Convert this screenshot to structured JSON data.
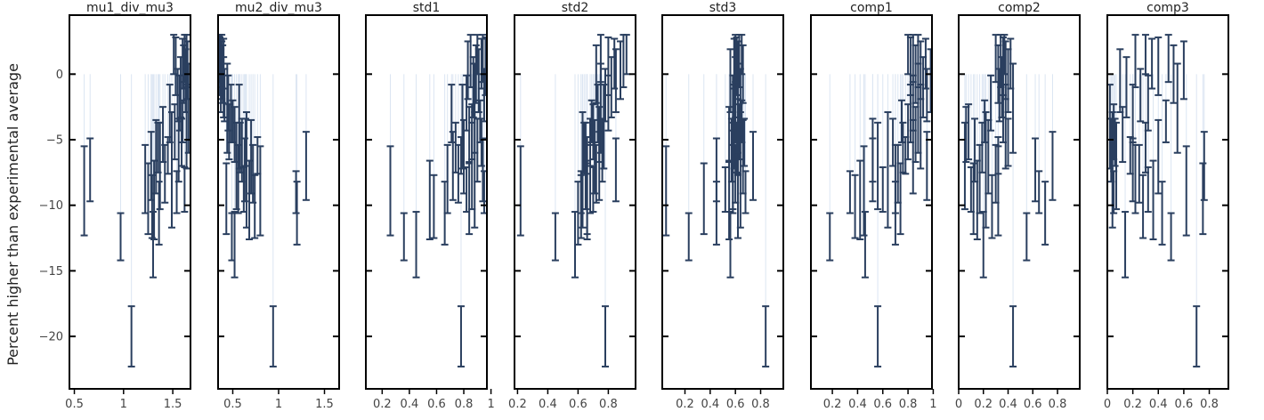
{
  "chart_data": {
    "type": "errorbar-scatter",
    "ylabel": "Percent higher than experimental average",
    "ylim": [
      -24,
      4.5
    ],
    "yticks": [
      0,
      -5,
      -10,
      -15,
      -20
    ],
    "error_color": "#2a3f5f",
    "stem_color": "#dbe5f2",
    "points": [
      {
        "y": -13.0,
        "e": 2.5
      },
      {
        "y": -10.6,
        "e": 2.4
      },
      {
        "y": -10.1,
        "e": 2.4
      },
      {
        "y": -9.6,
        "e": 3.0
      },
      {
        "y": -9.5,
        "e": 2.7
      },
      {
        "y": -9.0,
        "e": 1.6
      },
      {
        "y": -8.8,
        "e": 1.7
      },
      {
        "y": -8.0,
        "e": 2.6
      },
      {
        "y": -7.6,
        "e": 2.2
      },
      {
        "y": -7.3,
        "e": 4.4
      },
      {
        "y": -7.0,
        "e": 2.6
      },
      {
        "y": -7.0,
        "e": 3.3
      },
      {
        "y": -6.3,
        "e": 2.8
      },
      {
        "y": -6.2,
        "e": 1.4
      },
      {
        "y": -5.8,
        "e": 2.4
      },
      {
        "y": -5.6,
        "e": 1.9
      },
      {
        "y": -5.2,
        "e": 1.8
      },
      {
        "y": -4.6,
        "e": 2.1
      },
      {
        "y": -4.4,
        "e": 2.1
      },
      {
        "y": -4.0,
        "e": 3.2
      },
      {
        "y": -3.6,
        "e": 1.6
      },
      {
        "y": -3.0,
        "e": 2.2
      },
      {
        "y": -2.6,
        "e": 3.4
      },
      {
        "y": -2.2,
        "e": 2.1
      },
      {
        "y": -1.6,
        "e": 2.0
      },
      {
        "y": -1.0,
        "e": 2.3
      },
      {
        "y": -0.5,
        "e": 2.4
      },
      {
        "y": 0.0,
        "e": 2.2
      },
      {
        "y": 0.3,
        "e": 2.2
      },
      {
        "y": 0.6,
        "e": 2.2
      },
      {
        "y": 0.8,
        "e": 1.9
      },
      {
        "y": 1.0,
        "e": 2.0
      },
      {
        "y": 1.2,
        "e": 1.8
      },
      {
        "y": 1.5,
        "e": 1.5
      },
      {
        "y": -20.0,
        "e": 2.3
      },
      {
        "y": -8.9,
        "e": 3.4
      },
      {
        "y": -7.3,
        "e": 2.4
      },
      {
        "y": -12.4,
        "e": 1.8
      }
    ],
    "panels": [
      {
        "title": "mu1_div_mu3",
        "xlim": [
          0.45,
          1.68
        ],
        "xticks": [
          0.5,
          1,
          1.5
        ],
        "xticklabels": [
          "0.5",
          "1",
          "1.5"
        ],
        "x": [
          1.3,
          1.36,
          1.29,
          1.31,
          1.25,
          1.54,
          1.62,
          1.22,
          1.42,
          1.49,
          1.28,
          1.37,
          1.33,
          1.45,
          1.56,
          1.35,
          1.59,
          1.4,
          1.52,
          1.64,
          1.6,
          1.47,
          1.66,
          1.57,
          1.55,
          1.58,
          1.63,
          1.61,
          1.65,
          1.53,
          1.6,
          1.64,
          1.62,
          1.51,
          1.08,
          0.6,
          0.66,
          0.97
        ]
      },
      {
        "title": "mu2_div_mu3",
        "xlim": [
          0.34,
          1.66
        ],
        "xticks": [
          0.5,
          1,
          1.5
        ],
        "xticklabels": [
          "0.5",
          "1",
          "1.5"
        ],
        "x": [
          0.52,
          1.2,
          0.74,
          0.68,
          0.43,
          1.19,
          0.62,
          0.56,
          0.72,
          0.65,
          1.3,
          0.54,
          0.7,
          0.77,
          0.6,
          0.58,
          0.64,
          0.52,
          0.46,
          0.57,
          0.5,
          0.48,
          0.44,
          0.45,
          0.41,
          0.4,
          0.37,
          0.39,
          0.38,
          0.36,
          0.4,
          0.38,
          0.36,
          0.35,
          0.94,
          0.8,
          0.63,
          0.49
        ]
      },
      {
        "title": "std1",
        "xlim": [
          0.08,
          0.97
        ],
        "xticks": [
          0.2,
          0.4,
          0.6,
          0.8,
          1.0
        ],
        "xticklabels": [
          "0.2",
          "0.4",
          "0.6",
          "0.8",
          "1"
        ],
        "x": [
          0.45,
          0.66,
          0.58,
          0.55,
          0.84,
          0.95,
          0.82,
          0.68,
          0.76,
          0.88,
          0.72,
          0.86,
          0.8,
          0.78,
          0.9,
          0.74,
          0.93,
          0.84,
          0.86,
          0.79,
          0.92,
          0.71,
          0.88,
          0.82,
          0.95,
          0.87,
          0.91,
          0.89,
          0.83,
          0.96,
          0.93,
          0.85,
          0.94,
          0.9,
          0.78,
          0.26,
          0.94,
          0.36
        ]
      },
      {
        "title": "std2",
        "xlim": [
          0.18,
          0.98
        ],
        "xticks": [
          0.2,
          0.4,
          0.6,
          0.8
        ],
        "xticklabels": [
          "0.2",
          "0.4",
          "0.6",
          "0.8"
        ],
        "x": [
          0.58,
          0.6,
          0.62,
          0.66,
          0.66,
          0.62,
          0.7,
          0.68,
          0.72,
          0.63,
          0.74,
          0.65,
          0.71,
          0.66,
          0.76,
          0.64,
          0.68,
          0.74,
          0.7,
          0.77,
          0.69,
          0.73,
          0.75,
          0.8,
          0.78,
          0.82,
          0.85,
          0.72,
          0.88,
          0.8,
          0.84,
          0.9,
          0.75,
          0.92,
          0.78,
          0.22,
          0.85,
          0.45
        ]
      },
      {
        "title": "std3",
        "xlim": [
          0.02,
          0.98
        ],
        "xticks": [
          0.2,
          0.4,
          0.6,
          0.8
        ],
        "xticklabels": [
          "0.2",
          "0.4",
          "0.6",
          "0.8"
        ],
        "x": [
          0.56,
          0.45,
          0.62,
          0.55,
          0.35,
          0.68,
          0.52,
          0.58,
          0.6,
          0.64,
          0.74,
          0.58,
          0.66,
          0.62,
          0.57,
          0.61,
          0.67,
          0.55,
          0.63,
          0.59,
          0.65,
          0.6,
          0.62,
          0.58,
          0.64,
          0.6,
          0.56,
          0.66,
          0.62,
          0.61,
          0.59,
          0.63,
          0.6,
          0.65,
          0.84,
          0.05,
          0.45,
          0.23
        ]
      },
      {
        "title": "comp1",
        "xlim": [
          0.03,
          0.99
        ],
        "xticks": [
          0.2,
          0.4,
          0.6,
          0.8,
          1.0
        ],
        "xticklabels": [
          "0.2",
          "0.4",
          "0.6",
          "0.8",
          "1"
        ],
        "x": [
          0.46,
          0.7,
          0.38,
          0.42,
          0.74,
          0.34,
          0.6,
          0.7,
          0.72,
          0.64,
          0.95,
          0.56,
          0.84,
          0.78,
          0.52,
          0.76,
          0.68,
          0.86,
          0.8,
          0.9,
          0.75,
          0.82,
          0.88,
          0.84,
          0.95,
          0.92,
          0.98,
          0.86,
          0.9,
          0.82,
          0.94,
          0.88,
          0.84,
          0.8,
          0.56,
          0.45,
          0.52,
          0.18
        ]
      },
      {
        "title": "comp2",
        "xlim": [
          0.0,
          0.98
        ],
        "xticks": [
          0,
          0.2,
          0.4,
          0.6,
          0.8
        ],
        "xticklabels": [
          "0",
          "0.2",
          "0.4",
          "0.6",
          "0.8"
        ],
        "x": [
          0.2,
          0.7,
          0.27,
          0.15,
          0.12,
          0.65,
          0.1,
          0.17,
          0.3,
          0.22,
          0.76,
          0.05,
          0.24,
          0.32,
          0.13,
          0.19,
          0.4,
          0.06,
          0.08,
          0.38,
          0.21,
          0.36,
          0.44,
          0.26,
          0.33,
          0.35,
          0.4,
          0.32,
          0.38,
          0.36,
          0.42,
          0.34,
          0.3,
          0.37,
          0.44,
          0.32,
          0.62,
          0.55
        ]
      },
      {
        "title": "comp3",
        "xlim": [
          0.0,
          0.95
        ],
        "xticks": [
          0,
          0.2,
          0.4,
          0.6,
          0.8
        ],
        "xticklabels": [
          "0",
          "0.2",
          "0.4",
          "0.6",
          "0.8"
        ],
        "x": [
          0.14,
          0.43,
          0.28,
          0.36,
          0.75,
          0.05,
          0.32,
          0.22,
          0.25,
          0.04,
          0.76,
          0.07,
          0.4,
          0.18,
          0.03,
          0.3,
          0.06,
          0.12,
          0.05,
          0.02,
          0.46,
          0.2,
          0.55,
          0.32,
          0.26,
          0.15,
          0.1,
          0.52,
          0.6,
          0.4,
          0.35,
          0.22,
          0.48,
          0.3,
          0.7,
          0.62,
          0.2,
          0.5
        ]
      }
    ]
  }
}
